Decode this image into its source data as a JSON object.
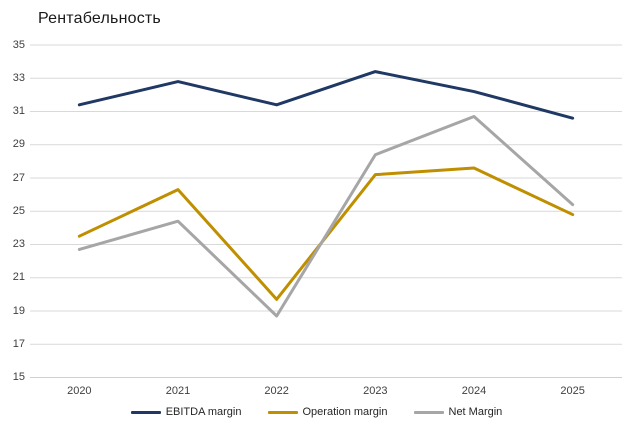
{
  "chart_data": {
    "type": "line",
    "title": "Рентабельность",
    "categories": [
      "2020",
      "2021",
      "2022",
      "2023",
      "2024",
      "2025"
    ],
    "series": [
      {
        "name": "EBITDA margin",
        "color": "#1f3864",
        "values": [
          31.4,
          32.8,
          31.4,
          33.4,
          32.2,
          30.6
        ]
      },
      {
        "name": "Operation margin",
        "color": "#bf8f00",
        "values": [
          23.5,
          26.3,
          19.7,
          27.2,
          27.6,
          24.8
        ]
      },
      {
        "name": "Net Margin",
        "color": "#a6a6a6",
        "values": [
          22.7,
          24.4,
          18.7,
          28.4,
          30.7,
          25.4
        ]
      }
    ],
    "xlabel": "",
    "ylabel": "",
    "ylim": [
      15,
      35
    ],
    "yticks": [
      15,
      17,
      19,
      21,
      23,
      25,
      27,
      29,
      31,
      33,
      35
    ],
    "grid": "horizontal",
    "legend_position": "bottom",
    "colors": {
      "gridline": "#d9d9d9",
      "axis_line": "#d0d0d0",
      "tick_label": "#404040",
      "title": "#1a1a1a",
      "background": "#ffffff"
    }
  }
}
